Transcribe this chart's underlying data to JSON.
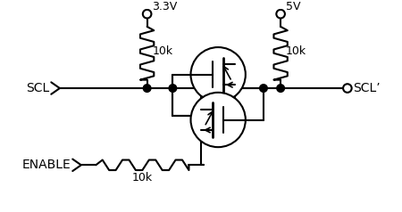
{
  "bg_color": "#ffffff",
  "line_color": "#000000",
  "lw": 1.5,
  "vdd1_label": "3.3V",
  "vdd2_label": "5V",
  "res1_label": "10k",
  "res2_label": "10k",
  "res3_label": "10k",
  "scl_label": "SCL",
  "sclp_label": "SCL’",
  "enable_label": "ENABLE",
  "figsize": [
    4.5,
    2.38
  ],
  "dpi": 100
}
